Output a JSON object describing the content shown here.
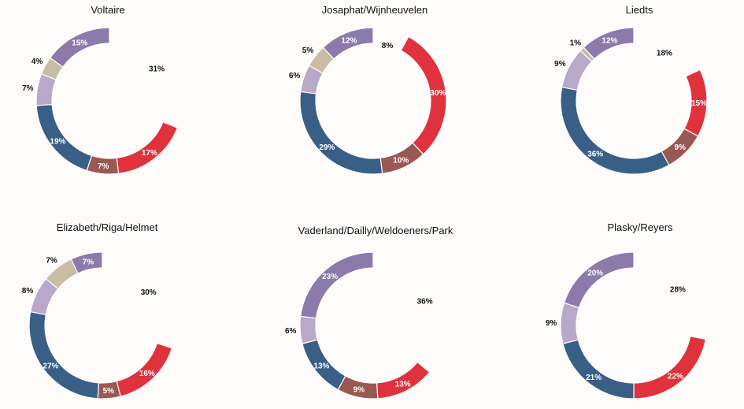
{
  "colors": {
    "red": "#e0323c",
    "brown": "#9a5852",
    "navy": "#3a5f86",
    "lilac": "#b8a8ca",
    "tan": "#c8bca2",
    "purple": "#8c7aaa",
    "background": "#fdfcfa"
  },
  "chart_data": [
    {
      "type": "pie",
      "title": "Voltaire",
      "slices": [
        {
          "value": 31,
          "label": "31%",
          "color": "gap"
        },
        {
          "value": 17,
          "label": "17%",
          "color": "red"
        },
        {
          "value": 7,
          "label": "7%",
          "color": "brown"
        },
        {
          "value": 19,
          "label": "19%",
          "color": "navy"
        },
        {
          "value": 7,
          "label": "7%",
          "color": "lilac"
        },
        {
          "value": 4,
          "label": "4%",
          "color": "tan"
        },
        {
          "value": 15,
          "label": "15%",
          "color": "purple"
        }
      ]
    },
    {
      "type": "pie",
      "title": "Josaphat/Wijnheuvelen",
      "slices": [
        {
          "value": 8,
          "label": "8%",
          "color": "gap"
        },
        {
          "value": 30,
          "label": "30%",
          "color": "red"
        },
        {
          "value": 10,
          "label": "10%",
          "color": "brown"
        },
        {
          "value": 29,
          "label": "29%",
          "color": "navy"
        },
        {
          "value": 6,
          "label": "6%",
          "color": "lilac"
        },
        {
          "value": 5,
          "label": "5%",
          "color": "tan"
        },
        {
          "value": 12,
          "label": "12%",
          "color": "purple"
        }
      ]
    },
    {
      "type": "pie",
      "title": "Liedts",
      "slices": [
        {
          "value": 18,
          "label": "18%",
          "color": "gap"
        },
        {
          "value": 15,
          "label": "15%",
          "color": "red"
        },
        {
          "value": 9,
          "label": "9%",
          "color": "brown"
        },
        {
          "value": 36,
          "label": "36%",
          "color": "navy"
        },
        {
          "value": 9,
          "label": "9%",
          "color": "lilac"
        },
        {
          "value": 1,
          "label": "1%",
          "color": "tan"
        },
        {
          "value": 12,
          "label": "12%",
          "color": "purple"
        }
      ]
    },
    {
      "type": "pie",
      "title": "Elizabeth/Riga/Helmet",
      "slices": [
        {
          "value": 30,
          "label": "30%",
          "color": "gap"
        },
        {
          "value": 16,
          "label": "16%",
          "color": "red"
        },
        {
          "value": 5,
          "label": "5%",
          "color": "brown"
        },
        {
          "value": 27,
          "label": "27%",
          "color": "navy"
        },
        {
          "value": 8,
          "label": "8%",
          "color": "lilac"
        },
        {
          "value": 7,
          "label": "7%",
          "color": "tan"
        },
        {
          "value": 7,
          "label": "7%",
          "color": "purple"
        }
      ]
    },
    {
      "type": "pie",
      "title": "Vaderland/Dailly/Weldoeners/Park",
      "slices": [
        {
          "value": 36,
          "label": "36%",
          "color": "gap"
        },
        {
          "value": 13,
          "label": "13%",
          "color": "red"
        },
        {
          "value": 9,
          "label": "9%",
          "color": "brown"
        },
        {
          "value": 13,
          "label": "13%",
          "color": "navy"
        },
        {
          "value": 6,
          "label": "6%",
          "color": "lilac"
        },
        {
          "value": 23,
          "label": "23%",
          "color": "purple"
        }
      ]
    },
    {
      "type": "pie",
      "title": "Plasky/Reyers",
      "slices": [
        {
          "value": 28,
          "label": "28%",
          "color": "gap"
        },
        {
          "value": 22,
          "label": "22%",
          "color": "red"
        },
        {
          "value": 21,
          "label": "21%",
          "color": "navy"
        },
        {
          "value": 9,
          "label": "9%",
          "color": "lilac"
        },
        {
          "value": 20,
          "label": "20%",
          "color": "purple"
        }
      ]
    }
  ]
}
